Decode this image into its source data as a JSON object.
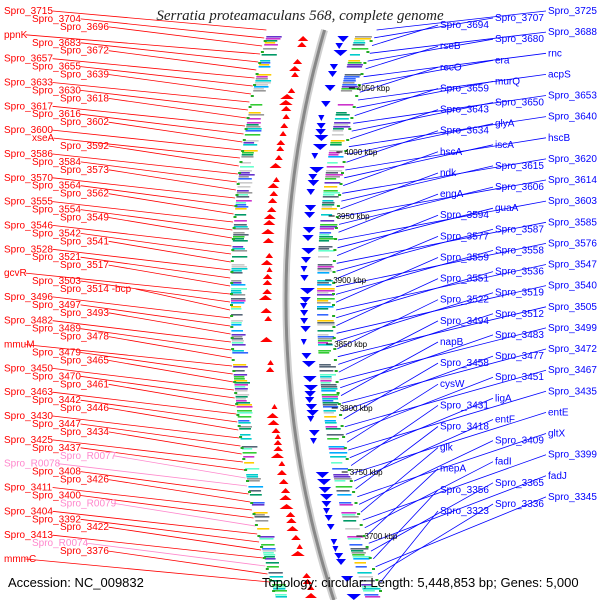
{
  "title": "Serratia proteamaculans 568, complete genome",
  "footer": {
    "accession": "Accession: NC_009832",
    "info": "Topology: circular; Length: 5,448,853 bp; Genes: 5,000"
  },
  "colors": {
    "forward_strand": "#ff0000",
    "reverse_strand": "#0000ff",
    "rna": "#ff88cc",
    "backbone": "#888888"
  },
  "scale_labels": [
    "4050 kbp",
    "4000 kbp",
    "3950 kbp",
    "3900 kbp",
    "3850 kbp",
    "3800 kbp",
    "3750 kbp",
    "3700 kbp"
  ],
  "left_labels": [
    {
      "text": "Spro_3715",
      "color": "red"
    },
    {
      "text": "Spro_3704",
      "color": "red"
    },
    {
      "text": "Spro_3696",
      "color": "red"
    },
    {
      "text": "ppnK",
      "color": "red"
    },
    {
      "text": "Spro_3683",
      "color": "red"
    },
    {
      "text": "Spro_3672",
      "color": "red"
    },
    {
      "text": "Spro_3657",
      "color": "red"
    },
    {
      "text": "Spro_3655",
      "color": "red"
    },
    {
      "text": "Spro_3639",
      "color": "red"
    },
    {
      "text": "Spro_3633",
      "color": "red"
    },
    {
      "text": "Spro_3630",
      "color": "red"
    },
    {
      "text": "Spro_3618",
      "color": "red"
    },
    {
      "text": "Spro_3617",
      "color": "red"
    },
    {
      "text": "Spro_3616",
      "color": "red"
    },
    {
      "text": "Spro_3602",
      "color": "red"
    },
    {
      "text": "Spro_3600",
      "color": "red"
    },
    {
      "text": "xseA",
      "color": "red"
    },
    {
      "text": "Spro_3592",
      "color": "red"
    },
    {
      "text": "Spro_3586",
      "color": "red"
    },
    {
      "text": "Spro_3584",
      "color": "red"
    },
    {
      "text": "Spro_3573",
      "color": "red"
    },
    {
      "text": "Spro_3570",
      "color": "red"
    },
    {
      "text": "Spro_3564",
      "color": "red"
    },
    {
      "text": "Spro_3562",
      "color": "red"
    },
    {
      "text": "Spro_3555",
      "color": "red"
    },
    {
      "text": "Spro_3554",
      "color": "red"
    },
    {
      "text": "Spro_3549",
      "color": "red"
    },
    {
      "text": "Spro_3546",
      "color": "red"
    },
    {
      "text": "Spro_3542",
      "color": "red"
    },
    {
      "text": "Spro_3541",
      "color": "red"
    },
    {
      "text": "Spro_3528",
      "color": "red"
    },
    {
      "text": "Spro_3521",
      "color": "red"
    },
    {
      "text": "Spro_3517",
      "color": "red"
    },
    {
      "text": "gcvR",
      "color": "red"
    },
    {
      "text": "Spro_3503",
      "color": "red"
    },
    {
      "text": "Spro_3514 -bcp",
      "color": "red"
    },
    {
      "text": "Spro_3496",
      "color": "red"
    },
    {
      "text": "Spro_3497",
      "color": "red"
    },
    {
      "text": "Spro_3493",
      "color": "red"
    },
    {
      "text": "Spro_3482",
      "color": "red"
    },
    {
      "text": "Spro_3489",
      "color": "red"
    },
    {
      "text": "Spro_3478",
      "color": "red"
    },
    {
      "text": "mmuM",
      "color": "red"
    },
    {
      "text": "Spro_3479",
      "color": "red"
    },
    {
      "text": "Spro_3465",
      "color": "red"
    },
    {
      "text": "Spro_3450",
      "color": "red"
    },
    {
      "text": "Spro_3470",
      "color": "red"
    },
    {
      "text": "Spro_3461",
      "color": "red"
    },
    {
      "text": "Spro_3463",
      "color": "red"
    },
    {
      "text": "Spro_3442",
      "color": "red"
    },
    {
      "text": "Spro_3446",
      "color": "red"
    },
    {
      "text": "Spro_3430",
      "color": "red"
    },
    {
      "text": "Spro_3447",
      "color": "red"
    },
    {
      "text": "Spro_3434",
      "color": "red"
    },
    {
      "text": "Spro_3425",
      "color": "red"
    },
    {
      "text": "Spro_3437",
      "color": "red"
    },
    {
      "text": "Spro_R0077",
      "color": "pink"
    },
    {
      "text": "Spro_R0078",
      "color": "pink"
    },
    {
      "text": "Spro_3408",
      "color": "red"
    },
    {
      "text": "Spro_3426",
      "color": "red"
    },
    {
      "text": "Spro_3411",
      "color": "red"
    },
    {
      "text": "Spro_3400",
      "color": "red"
    },
    {
      "text": "Spro_R0079",
      "color": "pink"
    },
    {
      "text": "Spro_3404",
      "color": "red"
    },
    {
      "text": "Spro_3392",
      "color": "red"
    },
    {
      "text": "Spro_3422",
      "color": "red"
    },
    {
      "text": "Spro_3413",
      "color": "red"
    },
    {
      "text": "Spro_R0074",
      "color": "pink"
    },
    {
      "text": "Spro_3376",
      "color": "red"
    },
    {
      "text": "mmmC",
      "color": "red"
    }
  ],
  "right_labels": [
    {
      "text": "Spro_3725"
    },
    {
      "text": "Spro_3707"
    },
    {
      "text": "Spro_3694"
    },
    {
      "text": "Spro_3688"
    },
    {
      "text": "Spro_3680"
    },
    {
      "text": "rseB"
    },
    {
      "text": "rnc"
    },
    {
      "text": "era"
    },
    {
      "text": "recO"
    },
    {
      "text": "acpS"
    },
    {
      "text": "murQ"
    },
    {
      "text": "Spro_3659"
    },
    {
      "text": "Spro_3653"
    },
    {
      "text": "Spro_3650"
    },
    {
      "text": "Spro_3643"
    },
    {
      "text": "Spro_3640"
    },
    {
      "text": "glyA"
    },
    {
      "text": "Spro_3634"
    },
    {
      "text": "hscB"
    },
    {
      "text": "iscA"
    },
    {
      "text": "hscA"
    },
    {
      "text": "Spro_3620"
    },
    {
      "text": "Spro_3615"
    },
    {
      "text": "ndk"
    },
    {
      "text": "Spro_3614"
    },
    {
      "text": "Spro_3606"
    },
    {
      "text": "engA"
    },
    {
      "text": "Spro_3603"
    },
    {
      "text": "guaA"
    },
    {
      "text": "Spro_3594"
    },
    {
      "text": "Spro_3585"
    },
    {
      "text": "Spro_3587"
    },
    {
      "text": "Spro_3577"
    },
    {
      "text": "Spro_3576"
    },
    {
      "text": "Spro_3558"
    },
    {
      "text": "Spro_3559"
    },
    {
      "text": "Spro_3547"
    },
    {
      "text": "Spro_3536"
    },
    {
      "text": "Spro_3551"
    },
    {
      "text": "Spro_3540"
    },
    {
      "text": "Spro_3519"
    },
    {
      "text": "Spro_3522"
    },
    {
      "text": "Spro_3505"
    },
    {
      "text": "Spro_3512"
    },
    {
      "text": "Spro_3494"
    },
    {
      "text": "Spro_3499"
    },
    {
      "text": "Spro_3483"
    },
    {
      "text": "napB"
    },
    {
      "text": "Spro_3472"
    },
    {
      "text": "Spro_3477"
    },
    {
      "text": "Spro_3458"
    },
    {
      "text": "Spro_3467"
    },
    {
      "text": "Spro_3451"
    },
    {
      "text": "cysW"
    },
    {
      "text": "Spro_3435"
    },
    {
      "text": "ligA"
    },
    {
      "text": "Spro_3431"
    },
    {
      "text": "entE"
    },
    {
      "text": "entF"
    },
    {
      "text": "Spro_3418"
    },
    {
      "text": "gltX"
    },
    {
      "text": "Spro_3409"
    },
    {
      "text": "glk"
    },
    {
      "text": "Spro_3399"
    },
    {
      "text": "fadI"
    },
    {
      "text": "mepA"
    },
    {
      "text": "fadJ"
    },
    {
      "text": "Spro_3365"
    },
    {
      "text": "Spro_3356"
    },
    {
      "text": "Spro_3345"
    },
    {
      "text": "Spro_3336"
    },
    {
      "text": "Spro_3323"
    }
  ]
}
